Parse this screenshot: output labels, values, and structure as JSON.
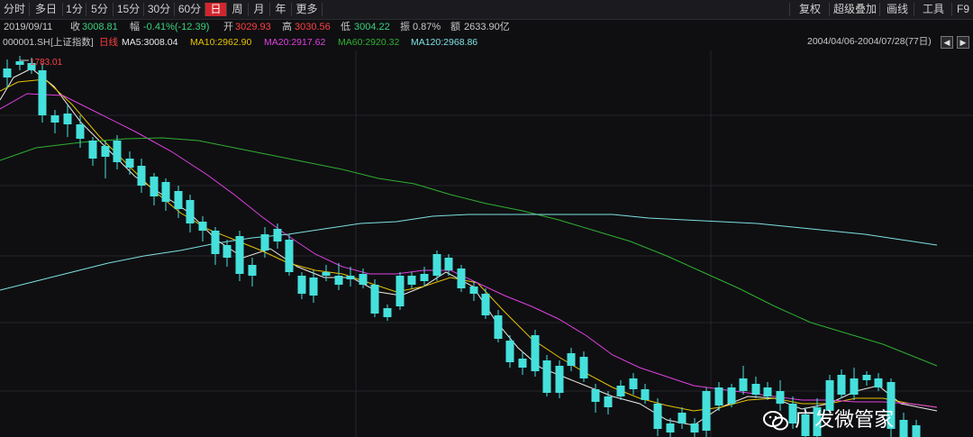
{
  "toolbar": {
    "periods": [
      "分时",
      "多日",
      "1分",
      "5分",
      "15分",
      "30分",
      "60分",
      "日",
      "周",
      "月",
      "年",
      "更多"
    ],
    "active": "日",
    "right_tools": [
      "复权",
      "超级叠加",
      "画线",
      "工具",
      "F9"
    ]
  },
  "info": {
    "date": "2019/09/11",
    "close_label": "收",
    "close": "3008.81",
    "change_label": "幅",
    "change": "-0.41%(-12.39)",
    "open_label": "开",
    "open": "3029.93",
    "high_label": "高",
    "high": "3030.56",
    "low_label": "低",
    "low": "3004.22",
    "amp_label": "振",
    "amp": "0.87%",
    "amount_label": "额",
    "amount": "2633.90亿"
  },
  "ma_bar": {
    "symbol": "000001.SH",
    "index_name": "[上证指数]",
    "period": "日线",
    "ma5": "MA5:3008.04",
    "ma10": "MA10:2962.90",
    "ma20": "MA20:2917.62",
    "ma60": "MA60:2920.32",
    "ma120": "MA120:2968.86",
    "range": "2004/04/06-2004/07/28(77日)"
  },
  "chart_data": {
    "type": "candlestick",
    "peak_label": "1783.01",
    "colors": {
      "up": "#ff3b3b",
      "down": "#45e0dc",
      "ma5": "#f0ebe3",
      "ma10": "#e6c200",
      "ma20": "#e040e0",
      "ma60": "#2fb02f",
      "ma120": "#7fe0e0"
    }
  },
  "watermark": "广发微管家"
}
